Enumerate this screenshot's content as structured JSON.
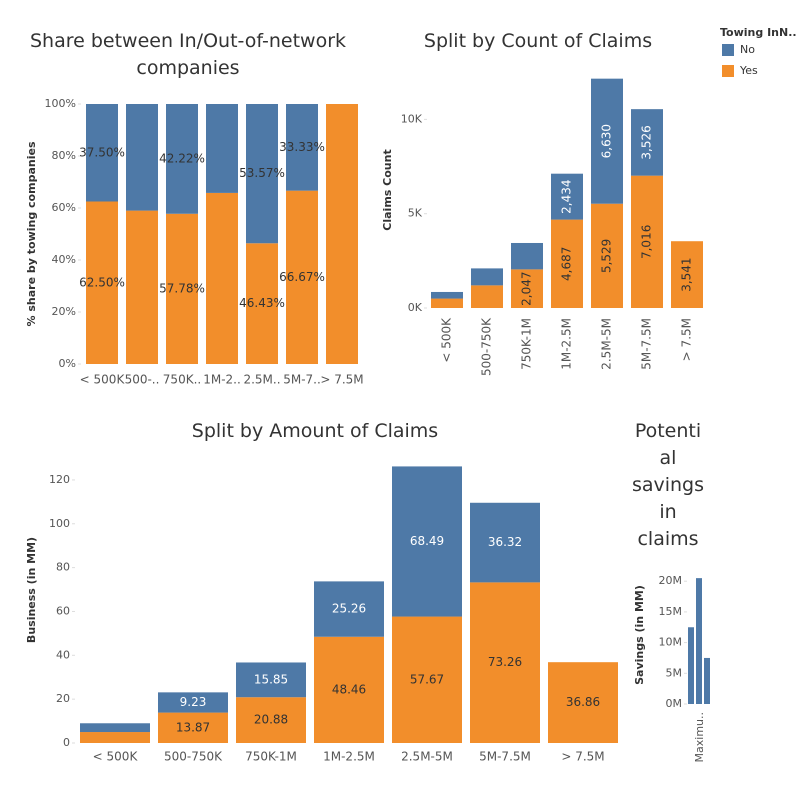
{
  "chart_data": [
    {
      "type": "stacked_bar",
      "title": "Share between In/Out-of-network companies",
      "ylabel": "% share by towing companies",
      "legend_title": "Towing InN..",
      "categories": [
        "< 500K",
        "500-..",
        "750K..",
        "1M-2..",
        "2.5M..",
        "5M-7..",
        "> 7.5M"
      ],
      "series": [
        {
          "name": "No",
          "color": "#4e79a7",
          "values": [
            37.5,
            41,
            42.22,
            34.2,
            53.57,
            33.33,
            0
          ],
          "value_labels": [
            "37.50%",
            null,
            "42.22%",
            null,
            "53.57%",
            "33.33%",
            null
          ]
        },
        {
          "name": "Yes",
          "color": "#f28e2b",
          "values": [
            62.5,
            59,
            57.78,
            65.8,
            46.43,
            66.67,
            100
          ],
          "value_labels": [
            "62.50%",
            null,
            "57.78%",
            null,
            "46.43%",
            "66.67%",
            null
          ]
        }
      ],
      "ylim": [
        0,
        100
      ],
      "yticks": [
        {
          "value": 0,
          "label": "0%"
        },
        {
          "value": 20,
          "label": "20%"
        },
        {
          "value": 40,
          "label": "40%"
        },
        {
          "value": 60,
          "label": "60%"
        },
        {
          "value": 80,
          "label": "80%"
        },
        {
          "value": 100,
          "label": "100%"
        }
      ]
    },
    {
      "type": "stacked_bar",
      "title": "Split by Count of Claims",
      "ylabel": "Claims Count",
      "categories": [
        "< 500K",
        "500-750K",
        "750K-1M",
        "1M-2.5M",
        "2.5M-5M",
        "5M-7.5M",
        "> 7.5M"
      ],
      "series": [
        {
          "name": "No",
          "color": "#4e79a7",
          "values": [
            350,
            900,
            1400,
            2434,
            6630,
            3526,
            0
          ],
          "value_labels": [
            null,
            null,
            null,
            "2,434",
            "6,630",
            "3,526",
            null
          ]
        },
        {
          "name": "Yes",
          "color": "#f28e2b",
          "values": [
            500,
            1200,
            2047,
            4687,
            5529,
            7016,
            3541
          ],
          "value_labels": [
            null,
            null,
            "2,047",
            "4,687",
            "5,529",
            "7,016",
            "3,541"
          ]
        }
      ],
      "ylim": [
        0,
        12300
      ],
      "yticks": [
        {
          "value": 0,
          "label": "0K"
        },
        {
          "value": 5000,
          "label": "5K"
        },
        {
          "value": 10000,
          "label": "10K"
        }
      ]
    },
    {
      "type": "stacked_bar",
      "title": "Split by Amount of Claims",
      "ylabel": "Business (in MM)",
      "categories": [
        "< 500K",
        "500-750K",
        "750K-1M",
        "1M-2.5M",
        "2.5M-5M",
        "5M-7.5M",
        "> 7.5M"
      ],
      "series": [
        {
          "name": "No",
          "color": "#4e79a7",
          "values": [
            4,
            9.23,
            15.85,
            25.26,
            68.49,
            36.32,
            0
          ],
          "value_labels": [
            null,
            "9.23",
            "15.85",
            "25.26",
            "68.49",
            "36.32",
            null
          ]
        },
        {
          "name": "Yes",
          "color": "#f28e2b",
          "values": [
            5,
            13.87,
            20.88,
            48.46,
            57.67,
            73.26,
            36.86
          ],
          "value_labels": [
            null,
            "13.87",
            "20.88",
            "48.46",
            "57.67",
            "73.26",
            "36.86"
          ]
        }
      ],
      "ylim": [
        0,
        130
      ],
      "yticks": [
        0,
        20,
        40,
        60,
        80,
        100,
        120
      ]
    },
    {
      "type": "bar",
      "title": "Potential savings in claims",
      "ylabel": "Savings (in MM)",
      "x_label": "Maximu..",
      "color": "#4e79a7",
      "values": [
        12.5,
        20.5,
        7.5
      ],
      "ylim": [
        0,
        21.5
      ],
      "yticks": [
        {
          "value": 0,
          "label": "0M"
        },
        {
          "value": 5,
          "label": "5M"
        },
        {
          "value": 10,
          "label": "10M"
        },
        {
          "value": 15,
          "label": "15M"
        },
        {
          "value": 20,
          "label": "20M"
        }
      ]
    }
  ]
}
